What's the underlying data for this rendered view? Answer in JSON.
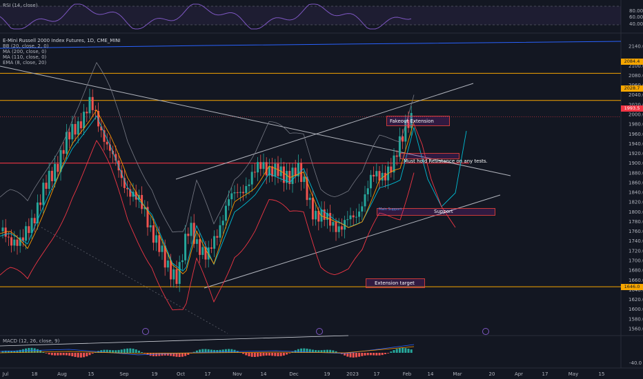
{
  "rsi": {
    "label": "RSI (14, close)",
    "ticks": [
      "80.00",
      "60.00",
      "40.00"
    ]
  },
  "main": {
    "legend": [
      "E-Mini Russell 2000 Index Futures, 1D, CME_MINI",
      "BB (20, close, 2, 0)",
      "MA (200, close, 0)",
      "MA (110, close, 0)",
      "EMA (8, close, 20)"
    ],
    "price_ticks": [
      "2140.0",
      "2100.0",
      "2080.0",
      "2060.0",
      "2040.0",
      "2020.0",
      "2000.0",
      "1980.0",
      "1960.0",
      "1940.0",
      "1920.0",
      "1900.0",
      "1880.0",
      "1860.0",
      "1840.0",
      "1820.0",
      "1800.0",
      "1780.0",
      "1760.0",
      "1740.0",
      "1720.0",
      "1700.0",
      "1680.0",
      "1660.0",
      "1640.0",
      "1620.0",
      "1600.0",
      "1580.0",
      "1560.0"
    ],
    "price_tags": [
      {
        "text": "2084.4",
        "color": "#f7a600"
      },
      {
        "text": "2028.7",
        "color": "#f7a600"
      },
      {
        "text": "1993.5",
        "color": "#f23645"
      },
      {
        "text": "1646.0",
        "color": "#f7a600"
      }
    ],
    "annotations": {
      "fakeout": "Fakeout Extension",
      "must_hold": "Must hold Resistance on any tests.",
      "support": "Support",
      "main_support": "Main Support",
      "extension_target": "Extension target"
    }
  },
  "macd": {
    "label": "MACD (12, 26, close, 9)",
    "ticks": [
      "-40.0"
    ]
  },
  "time_axis": [
    "Jul",
    "18",
    "Aug",
    "15",
    "Sep",
    "19",
    "Oct",
    "17",
    "Nov",
    "14",
    "Dec",
    "19",
    "2023",
    "17",
    "Feb",
    "14",
    "Mar",
    "20",
    "Apr",
    "17",
    "May",
    "15"
  ],
  "colors": {
    "background": "#131722",
    "up": "#26a69a",
    "down": "#ef5350",
    "rsi_line": "#7e57c2",
    "bb_band": "#f23645",
    "ma200": "#2962ff",
    "ma110": "#00bcd4",
    "ema8": "#ff9800",
    "level": "#f7a600",
    "resistance": "#f23645",
    "trendline": "#b2b5be"
  },
  "chart_data": {
    "type": "candlestick",
    "title": "E-Mini Russell 2000 Index Futures, 1D, CME_MINI",
    "ylim": [
      1550,
      2150
    ],
    "x": [
      "Jul",
      "18",
      "Aug",
      "15",
      "Sep",
      "19",
      "Oct",
      "17",
      "Nov",
      "14",
      "Dec",
      "19",
      "2023",
      "17",
      "Feb",
      "14",
      "Mar",
      "20",
      "Apr",
      "17",
      "May",
      "15"
    ],
    "horizontal_levels": [
      2084.4,
      2028.7,
      1900,
      1646.0
    ],
    "last_price": 1993.5,
    "annotations": [
      "Fakeout Extension",
      "Must hold Resistance on any tests.",
      "Support",
      "Main Support",
      "Extension target"
    ]
  }
}
